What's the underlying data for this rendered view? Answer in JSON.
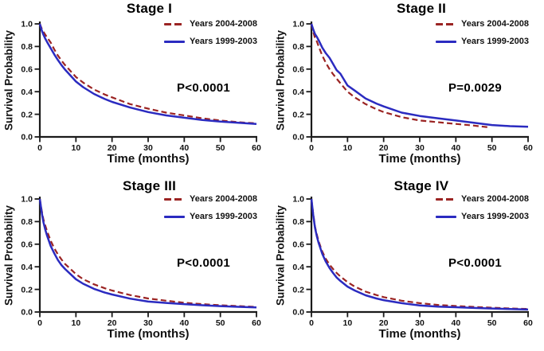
{
  "figure": {
    "background": "#ffffff",
    "axis_color": "#1a1a1a"
  },
  "chart_data": [
    {
      "type": "line",
      "title": "Stage I",
      "xlabel": "Time (months)",
      "ylabel": "Survival Probability",
      "p_label": "P<0.0001",
      "xlim": [
        0,
        60
      ],
      "ylim": [
        0,
        1.0
      ],
      "xticks": [
        0,
        10,
        20,
        30,
        40,
        50,
        60
      ],
      "xtick_labels": [
        "0",
        "10",
        "20",
        "30",
        "40",
        "50",
        "60"
      ],
      "yticks": [
        0,
        0.2,
        0.4,
        0.6,
        0.8,
        1.0
      ],
      "ytick_labels": [
        "0.0",
        "0.2",
        "0.4",
        "0.6",
        "0.8",
        "1.0"
      ],
      "grid": false,
      "legend_position": "top-right",
      "series": [
        {
          "name": "Years 2004-2008",
          "color": "#9b2423",
          "dashed": true,
          "x": [
            0,
            0.5,
            1,
            1.5,
            2,
            3,
            4,
            5,
            6,
            7,
            8,
            10,
            12,
            15,
            18,
            20,
            25,
            30,
            35,
            40,
            45,
            50,
            55,
            60
          ],
          "y": [
            1.0,
            0.96,
            0.93,
            0.905,
            0.88,
            0.835,
            0.775,
            0.72,
            0.675,
            0.635,
            0.6,
            0.53,
            0.48,
            0.42,
            0.375,
            0.35,
            0.29,
            0.25,
            0.215,
            0.19,
            0.165,
            0.145,
            0.13,
            0.12
          ]
        },
        {
          "name": "Years 1999-2003",
          "color": "#2b2bc0",
          "dashed": false,
          "x": [
            0,
            0.5,
            1,
            1.5,
            2,
            3,
            4,
            5,
            6,
            7,
            8,
            10,
            12,
            15,
            18,
            20,
            25,
            30,
            35,
            40,
            45,
            50,
            55,
            60
          ],
          "y": [
            1.0,
            0.945,
            0.905,
            0.87,
            0.84,
            0.785,
            0.73,
            0.68,
            0.635,
            0.595,
            0.56,
            0.49,
            0.44,
            0.38,
            0.335,
            0.31,
            0.26,
            0.22,
            0.19,
            0.17,
            0.15,
            0.135,
            0.125,
            0.115
          ]
        }
      ]
    },
    {
      "type": "line",
      "title": "Stage II",
      "xlabel": "Time (months)",
      "ylabel": "Survival Probability",
      "p_label": "P=0.0029",
      "xlim": [
        0,
        60
      ],
      "ylim": [
        0,
        1.0
      ],
      "xticks": [
        0,
        10,
        20,
        30,
        40,
        50,
        60
      ],
      "xtick_labels": [
        "0",
        "10",
        "20",
        "30",
        "40",
        "50",
        "60"
      ],
      "yticks": [
        0,
        0.2,
        0.4,
        0.6,
        0.8,
        1.0
      ],
      "ytick_labels": [
        "0.0",
        "0.2",
        "0.4",
        "0.6",
        "0.8",
        "1.0"
      ],
      "grid": false,
      "legend_position": "top-right",
      "series": [
        {
          "name": "Years 2004-2008",
          "color": "#9b2423",
          "dashed": true,
          "x": [
            0,
            0.5,
            1,
            1.5,
            2,
            3,
            4,
            5,
            6,
            7,
            8,
            10,
            12,
            15,
            18,
            20,
            25,
            30,
            35,
            40,
            45,
            49
          ],
          "y": [
            1.0,
            0.93,
            0.875,
            0.845,
            0.8,
            0.72,
            0.655,
            0.6,
            0.555,
            0.515,
            0.475,
            0.4,
            0.35,
            0.29,
            0.245,
            0.22,
            0.175,
            0.145,
            0.13,
            0.115,
            0.1,
            0.085
          ]
        },
        {
          "name": "Years 1999-2003",
          "color": "#2b2bc0",
          "dashed": false,
          "x": [
            0,
            0.5,
            1,
            1.5,
            2,
            3,
            4,
            5,
            6,
            7,
            8,
            10,
            12,
            15,
            18,
            20,
            25,
            30,
            35,
            40,
            45,
            50,
            55,
            60
          ],
          "y": [
            1.0,
            0.95,
            0.91,
            0.885,
            0.855,
            0.79,
            0.74,
            0.7,
            0.645,
            0.59,
            0.56,
            0.455,
            0.41,
            0.34,
            0.295,
            0.27,
            0.215,
            0.185,
            0.165,
            0.145,
            0.125,
            0.105,
            0.095,
            0.09
          ]
        }
      ]
    },
    {
      "type": "line",
      "title": "Stage III",
      "xlabel": "Time (months)",
      "ylabel": "Survival Probability",
      "p_label": "P<0.0001",
      "xlim": [
        0,
        60
      ],
      "ylim": [
        0,
        1.0
      ],
      "xticks": [
        0,
        10,
        20,
        30,
        40,
        50,
        60
      ],
      "xtick_labels": [
        "0",
        "10",
        "20",
        "30",
        "40",
        "50",
        "60"
      ],
      "yticks": [
        0,
        0.2,
        0.4,
        0.6,
        0.8,
        1.0
      ],
      "ytick_labels": [
        "0.0",
        "0.2",
        "0.4",
        "0.6",
        "0.8",
        "1.0"
      ],
      "grid": false,
      "legend_position": "top-right",
      "series": [
        {
          "name": "Years 2004-2008",
          "color": "#9b2423",
          "dashed": true,
          "x": [
            0,
            0.5,
            1,
            1.5,
            2,
            3,
            4,
            5,
            6,
            7,
            8,
            10,
            12,
            15,
            18,
            20,
            25,
            30,
            35,
            40,
            45,
            50,
            55,
            60
          ],
          "y": [
            1.0,
            0.9,
            0.82,
            0.765,
            0.715,
            0.63,
            0.565,
            0.51,
            0.465,
            0.425,
            0.395,
            0.335,
            0.29,
            0.245,
            0.21,
            0.19,
            0.15,
            0.12,
            0.1,
            0.082,
            0.07,
            0.06,
            0.052,
            0.045
          ]
        },
        {
          "name": "Years 1999-2003",
          "color": "#2b2bc0",
          "dashed": false,
          "x": [
            0,
            0.5,
            1,
            1.5,
            2,
            3,
            4,
            5,
            6,
            7,
            8,
            10,
            12,
            15,
            18,
            20,
            25,
            30,
            35,
            40,
            45,
            50,
            55,
            60
          ],
          "y": [
            1.0,
            0.885,
            0.795,
            0.73,
            0.675,
            0.585,
            0.52,
            0.46,
            0.415,
            0.38,
            0.35,
            0.29,
            0.25,
            0.205,
            0.172,
            0.155,
            0.118,
            0.092,
            0.08,
            0.07,
            0.06,
            0.052,
            0.046,
            0.04
          ]
        }
      ]
    },
    {
      "type": "line",
      "title": "Stage IV",
      "xlabel": "Time (months)",
      "ylabel": "Survival Probability",
      "p_label": "P<0.0001",
      "xlim": [
        0,
        60
      ],
      "ylim": [
        0,
        1.0
      ],
      "xticks": [
        0,
        10,
        20,
        30,
        40,
        50,
        60
      ],
      "xtick_labels": [
        "0",
        "10",
        "20",
        "30",
        "40",
        "50",
        "60"
      ],
      "yticks": [
        0,
        0.2,
        0.4,
        0.6,
        0.8,
        1.0
      ],
      "ytick_labels": [
        "0.0",
        "0.2",
        "0.4",
        "0.6",
        "0.8",
        "1.0"
      ],
      "grid": false,
      "legend_position": "top-right",
      "series": [
        {
          "name": "Years 2004-2008",
          "color": "#9b2423",
          "dashed": true,
          "x": [
            0,
            0.5,
            1,
            1.5,
            2,
            3,
            4,
            5,
            6,
            7,
            8,
            10,
            12,
            15,
            18,
            20,
            25,
            30,
            35,
            40,
            45,
            50,
            55,
            60
          ],
          "y": [
            1.0,
            0.865,
            0.755,
            0.685,
            0.625,
            0.535,
            0.47,
            0.42,
            0.38,
            0.345,
            0.315,
            0.265,
            0.225,
            0.18,
            0.15,
            0.132,
            0.1,
            0.078,
            0.063,
            0.053,
            0.045,
            0.038,
            0.032,
            0.027
          ]
        },
        {
          "name": "Years 1999-2003",
          "color": "#2b2bc0",
          "dashed": false,
          "x": [
            0,
            0.5,
            1,
            1.5,
            2,
            3,
            4,
            5,
            6,
            7,
            8,
            10,
            12,
            15,
            18,
            20,
            25,
            30,
            35,
            40,
            45,
            50,
            55,
            60
          ],
          "y": [
            1.0,
            0.855,
            0.745,
            0.67,
            0.61,
            0.515,
            0.445,
            0.39,
            0.345,
            0.305,
            0.275,
            0.225,
            0.19,
            0.148,
            0.12,
            0.105,
            0.078,
            0.058,
            0.048,
            0.042,
            0.036,
            0.031,
            0.026,
            0.022
          ]
        }
      ]
    }
  ]
}
